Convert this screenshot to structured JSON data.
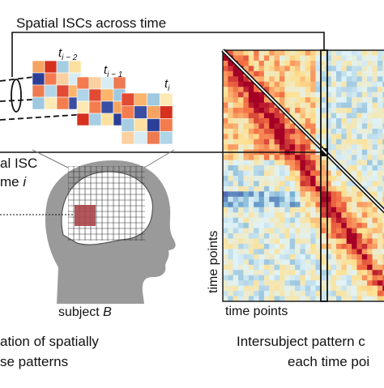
{
  "title": "Spatial ISCs across time",
  "matrices": [
    {
      "base": "t",
      "sub": "i − 2"
    },
    {
      "base": "t",
      "sub": "i − 1"
    },
    {
      "base": "t",
      "sub": "i"
    }
  ],
  "left_label": {
    "line1": "al ISC",
    "line2": "me ",
    "line2_italic": "i"
  },
  "subject": {
    "text": "subject ",
    "italic": "B"
  },
  "y_axis_label": "time points",
  "x_axis_label": "time points",
  "left_caption": [
    "ation of spatially",
    "se patterns"
  ],
  "right_caption": [
    "Intersubject pattern c",
    "each time poi"
  ]
}
